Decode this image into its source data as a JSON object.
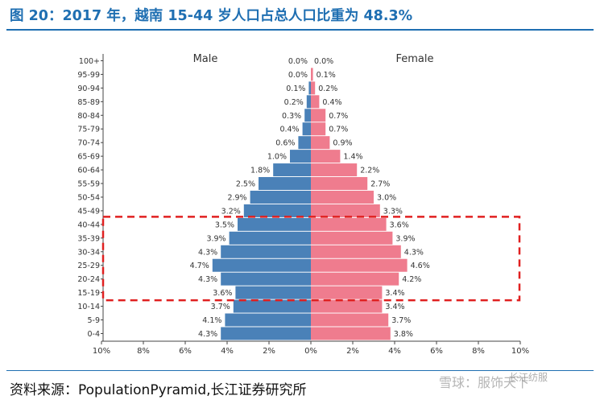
{
  "title": "图 20：2017 年，越南 15-44 岁人口占总人口比重为 48.3%",
  "source": "资料来源：PopulationPyramid,长江证券研究所",
  "watermark": "雪球：服饰天下",
  "watermark_top": "长江纺服",
  "colors": {
    "male": "#4a81b8",
    "female": "#ef7c8e",
    "title": "#1f6fb2",
    "highlight": "#e02020"
  },
  "highlight_label": "15-44 岁",
  "chart_data": {
    "type": "bar",
    "orientation": "horizontal",
    "title": "",
    "categories": [
      "100+",
      "95-99",
      "90-94",
      "85-89",
      "80-84",
      "75-79",
      "70-74",
      "65-69",
      "60-64",
      "55-59",
      "50-54",
      "45-49",
      "40-44",
      "35-39",
      "30-34",
      "25-29",
      "20-24",
      "15-19",
      "10-14",
      "5-9",
      "0-4"
    ],
    "series": [
      {
        "name": "Male",
        "values": [
          0.0,
          0.0,
          0.1,
          0.2,
          0.3,
          0.4,
          0.6,
          1.0,
          1.8,
          2.5,
          2.9,
          3.2,
          3.5,
          3.9,
          4.3,
          4.7,
          4.3,
          3.6,
          3.7,
          4.1,
          4.3
        ]
      },
      {
        "name": "Female",
        "values": [
          0.0,
          0.1,
          0.2,
          0.4,
          0.7,
          0.7,
          0.9,
          1.4,
          2.2,
          2.7,
          3.0,
          3.3,
          3.6,
          3.9,
          4.3,
          4.6,
          4.2,
          3.4,
          3.4,
          3.7,
          3.8
        ]
      }
    ],
    "value_labels": {
      "Male": [
        "0.0%",
        "0.0%",
        "0.1%",
        "0.2%",
        "0.3%",
        "0.4%",
        "0.6%",
        "1.0%",
        "1.8%",
        "2.5%",
        "2.9%",
        "3.2%",
        "3.5%",
        "3.9%",
        "4.3%",
        "4.7%",
        "4.3%",
        "3.6%",
        "3.7%",
        "4.1%",
        "4.3%"
      ],
      "Female": [
        "0.0%",
        "0.1%",
        "0.2%",
        "0.4%",
        "0.7%",
        "0.7%",
        "0.9%",
        "1.4%",
        "2.2%",
        "2.7%",
        "3.0%",
        "3.3%",
        "3.6%",
        "3.9%",
        "4.3%",
        "4.6%",
        "4.2%",
        "3.4%",
        "3.4%",
        "3.7%",
        "3.8%"
      ]
    },
    "xlim": [
      -10,
      10
    ],
    "xticks": [
      -10,
      -8,
      -6,
      -4,
      -2,
      0,
      2,
      4,
      6,
      8,
      10
    ],
    "xtick_labels": [
      "10%",
      "8%",
      "6%",
      "4%",
      "2%",
      "0%",
      "2%",
      "4%",
      "6%",
      "8%",
      "10%"
    ],
    "highlighted_categories": [
      "40-44",
      "35-39",
      "30-34",
      "25-29",
      "20-24",
      "15-19"
    ],
    "grid": false,
    "legend": "top"
  }
}
